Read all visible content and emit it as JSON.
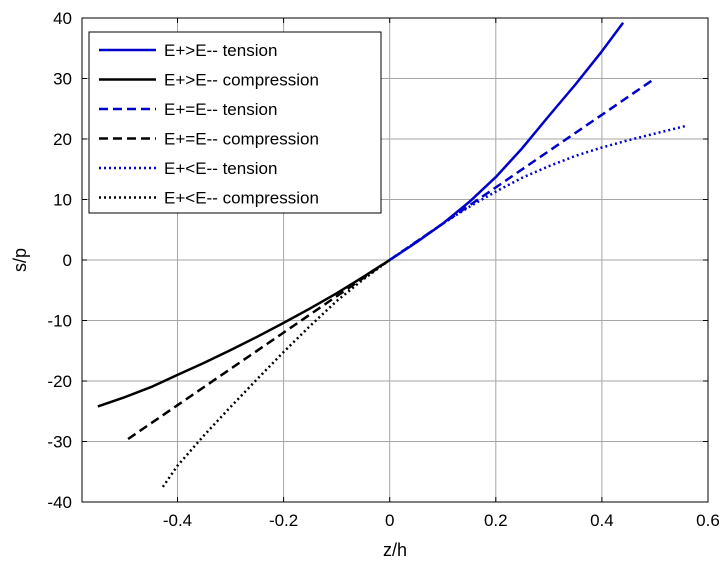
{
  "chart_data": {
    "type": "line",
    "title": "",
    "xlabel": "z/h",
    "ylabel": "s/p",
    "xlim": [
      -0.58,
      0.6
    ],
    "ylim": [
      -40,
      40
    ],
    "x_ticks": [
      -0.4,
      -0.2,
      0,
      0.2,
      0.4,
      0.6
    ],
    "x_tick_labels": [
      "-0.4",
      "-0.2",
      "0",
      "0.2",
      "0.4",
      "0.6"
    ],
    "y_ticks": [
      -40,
      -30,
      -20,
      -10,
      0,
      10,
      20,
      30,
      40
    ],
    "y_tick_labels": [
      "-40",
      "-30",
      "-20",
      "-10",
      "0",
      "10",
      "20",
      "30",
      "40"
    ],
    "grid": true,
    "legend_position": "top-left",
    "series": [
      {
        "name": "E+>E-- tension",
        "color": "#0000cc",
        "style": "solid",
        "x": [
          0,
          0.05,
          0.1,
          0.15,
          0.2,
          0.25,
          0.3,
          0.35,
          0.4,
          0.44
        ],
        "y": [
          0,
          2.9,
          6.0,
          9.6,
          13.7,
          18.5,
          23.8,
          29.0,
          34.5,
          39.2
        ]
      },
      {
        "name": "E+>E-- compression",
        "color": "#000000",
        "style": "solid",
        "x": [
          0,
          -0.05,
          -0.1,
          -0.15,
          -0.2,
          -0.25,
          -0.3,
          -0.35,
          -0.4,
          -0.45,
          -0.5,
          -0.55
        ],
        "y": [
          0,
          -2.8,
          -5.5,
          -8.0,
          -10.4,
          -12.7,
          -14.9,
          -17.0,
          -19.0,
          -21.0,
          -22.7,
          -24.2
        ]
      },
      {
        "name": "E+=E-- tension",
        "color": "#0000cc",
        "style": "dashed",
        "x": [
          0,
          0.1,
          0.2,
          0.3,
          0.4,
          0.5
        ],
        "y": [
          0,
          6.0,
          12.0,
          18.0,
          24.0,
          30.0
        ]
      },
      {
        "name": "E+=E-- compression",
        "color": "#000000",
        "style": "dashed",
        "x": [
          0,
          -0.1,
          -0.2,
          -0.3,
          -0.4,
          -0.5
        ],
        "y": [
          0,
          -6.0,
          -12.0,
          -18.0,
          -24.0,
          -30.0
        ]
      },
      {
        "name": "E+<E-- tension",
        "color": "#0000cc",
        "style": "dotted",
        "x": [
          0,
          0.05,
          0.1,
          0.15,
          0.2,
          0.25,
          0.3,
          0.35,
          0.4,
          0.45,
          0.5,
          0.56
        ],
        "y": [
          0,
          3.0,
          6.0,
          8.8,
          11.3,
          13.6,
          15.5,
          17.2,
          18.6,
          19.8,
          20.9,
          22.2
        ]
      },
      {
        "name": "E+<E-- compression",
        "color": "#000000",
        "style": "dotted",
        "x": [
          0,
          -0.05,
          -0.1,
          -0.15,
          -0.2,
          -0.25,
          -0.3,
          -0.35,
          -0.4,
          -0.43
        ],
        "y": [
          0,
          -3.2,
          -6.8,
          -10.9,
          -15.2,
          -19.7,
          -24.3,
          -29.0,
          -34.0,
          -37.8
        ]
      }
    ]
  }
}
